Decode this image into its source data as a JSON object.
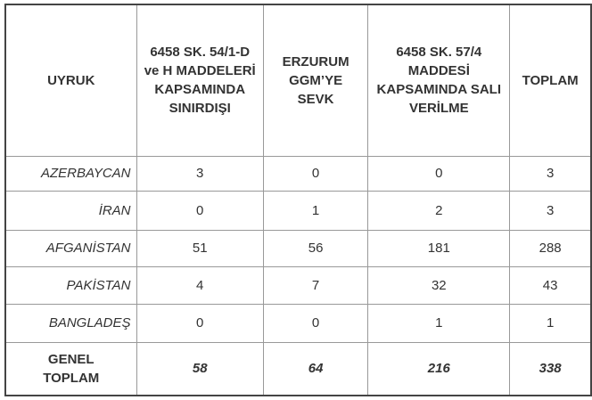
{
  "headers": [
    "UYRUK",
    "6458 SK. 54/1-D ve H MADDELERİ KAPSAMINDA SINIRDIŞI",
    "ERZURUM GGM’YE SEVK",
    "6458 SK. 57/4 MADDESİ KAPSAMINDA SALI VERİLME",
    "TOPLAM"
  ],
  "rows": [
    {
      "name": "AZERBAYCAN",
      "values": [
        "3",
        "0",
        "0",
        "3"
      ]
    },
    {
      "name": "İRAN",
      "values": [
        "0",
        "1",
        "2",
        "3"
      ]
    },
    {
      "name": "AFGANİSTAN",
      "values": [
        "51",
        "56",
        "181",
        "288"
      ]
    },
    {
      "name": "PAKİSTAN",
      "values": [
        "4",
        "7",
        "32",
        "43"
      ]
    },
    {
      "name": "BANGLADEŞ",
      "values": [
        "0",
        "0",
        "1",
        "1"
      ]
    }
  ],
  "total": {
    "label": "GENEL TOPLAM",
    "values": [
      "58",
      "64",
      "216",
      "338"
    ]
  }
}
